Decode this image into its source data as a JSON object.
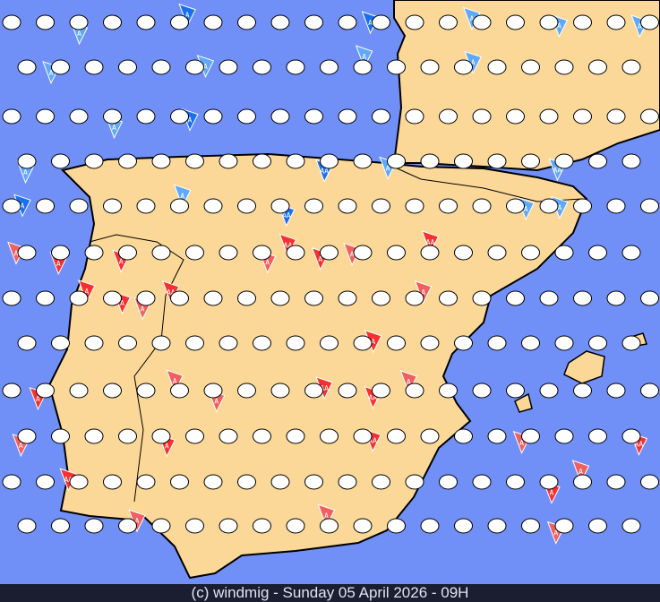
{
  "footer": {
    "credit": "(c) windmig - Sunday 05 April 2026 - 09H"
  },
  "colors": {
    "sea": "#7090f8",
    "land": "#fcd898",
    "coast": "#000000",
    "footer_bg": "#1a1e30",
    "calm_marker": "#ffffff",
    "wind_light_blue": "#60a8f8",
    "wind_blue": "#1870f0",
    "wind_pink": "#f06060",
    "wind_red": "#f83030"
  },
  "marker_labels": {
    "single": "A",
    "double": "AA"
  },
  "icons": {
    "calm": "white-circle-icon",
    "wind": "wind-pennant-triangle-icon"
  }
}
